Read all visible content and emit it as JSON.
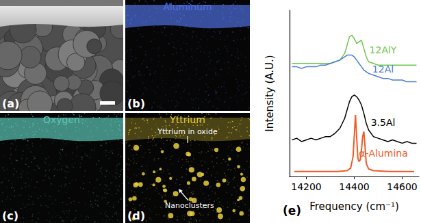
{
  "panels": [
    {
      "label": "(a)"
    },
    {
      "label": "(b)",
      "title": "Aluminum",
      "color": "#4f6fe0"
    },
    {
      "label": "(c)",
      "title": "Oxygen",
      "color": "#5cc6b6"
    },
    {
      "label": "(d)",
      "title": "Yttrium",
      "color": "#e6cf3c",
      "annotations": [
        "Yttrium in oxide",
        "Nanoclusters"
      ]
    }
  ],
  "chart_data": {
    "type": "line",
    "panel_label": "(e)",
    "x_label": "Frequency (cm⁻¹)",
    "y_label": "Intensity (A.U.)",
    "xlim": [
      14130,
      14670
    ],
    "xticks": [
      14200,
      14400,
      14600
    ],
    "ylim": [
      0,
      10
    ],
    "tick_labels": "x",
    "grid": false,
    "series": [
      {
        "name": "12AlY",
        "color": "#6dc64a",
        "x": [
          14140,
          14160,
          14180,
          14200,
          14220,
          14240,
          14260,
          14280,
          14300,
          14320,
          14340,
          14360,
          14370,
          14380,
          14390,
          14400,
          14410,
          14420,
          14430,
          14440,
          14450,
          14460,
          14480,
          14500,
          14520,
          14540,
          14560,
          14580,
          14600,
          14620,
          14640,
          14660
        ],
        "values": [
          6.8,
          6.8,
          6.8,
          6.8,
          6.8,
          6.8,
          6.8,
          6.8,
          6.8,
          6.9,
          7.0,
          7.4,
          7.9,
          8.4,
          8.5,
          8.3,
          8.0,
          8.1,
          8.2,
          7.7,
          7.2,
          6.9,
          6.8,
          6.7,
          6.7,
          6.7,
          6.7,
          6.7,
          6.7,
          6.7,
          6.7,
          6.7
        ]
      },
      {
        "name": "12Al",
        "color": "#4a7bd6",
        "x": [
          14140,
          14160,
          14180,
          14200,
          14220,
          14240,
          14260,
          14280,
          14300,
          14320,
          14340,
          14360,
          14370,
          14380,
          14390,
          14400,
          14410,
          14420,
          14430,
          14440,
          14450,
          14460,
          14480,
          14500,
          14520,
          14540,
          14560,
          14580,
          14600,
          14620,
          14640,
          14660
        ],
        "values": [
          6.6,
          6.6,
          6.5,
          6.6,
          6.6,
          6.6,
          6.7,
          6.7,
          6.8,
          6.9,
          7.0,
          7.2,
          7.3,
          7.3,
          7.3,
          7.2,
          7.0,
          6.8,
          6.6,
          6.4,
          6.3,
          6.2,
          6.1,
          6.0,
          5.9,
          5.9,
          5.8,
          5.8,
          5.8,
          5.7,
          5.7,
          5.7
        ]
      },
      {
        "name": "3.5Al",
        "color": "#000000",
        "x": [
          14140,
          14160,
          14180,
          14200,
          14220,
          14240,
          14260,
          14280,
          14300,
          14320,
          14340,
          14360,
          14370,
          14380,
          14390,
          14400,
          14410,
          14420,
          14430,
          14440,
          14450,
          14460,
          14480,
          14500,
          14520,
          14540,
          14560,
          14580,
          14600,
          14620,
          14640,
          14660
        ],
        "values": [
          2.2,
          2.3,
          2.1,
          2.2,
          2.3,
          2.2,
          2.3,
          2.4,
          2.4,
          2.6,
          2.9,
          3.5,
          4.0,
          4.5,
          4.8,
          4.9,
          4.8,
          4.6,
          4.3,
          3.8,
          3.2,
          2.8,
          2.4,
          2.3,
          2.2,
          2.1,
          2.2,
          2.1,
          2.0,
          2.1,
          2.0,
          2.0
        ]
      },
      {
        "name": "α-Alumina",
        "color": "#f05a28",
        "x": [
          14150,
          14250,
          14330,
          14370,
          14385,
          14395,
          14400,
          14405,
          14410,
          14415,
          14420,
          14425,
          14430,
          14435,
          14440,
          14445,
          14450,
          14460,
          14480,
          14550,
          14650
        ],
        "values": [
          0.3,
          0.3,
          0.3,
          0.35,
          0.5,
          1.2,
          2.4,
          3.7,
          2.4,
          1.1,
          0.9,
          1.0,
          1.6,
          2.4,
          2.7,
          1.8,
          0.8,
          0.45,
          0.35,
          0.3,
          0.3
        ]
      }
    ]
  }
}
